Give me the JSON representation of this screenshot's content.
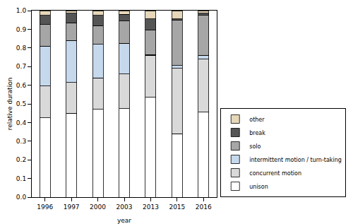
{
  "chart_data": {
    "type": "bar",
    "stacked": true,
    "orientation": "vertical",
    "x_label": "year",
    "y_label": "relative duration",
    "categories": [
      "1996",
      "1997",
      "2000",
      "2003",
      "2013",
      "2015",
      "2016"
    ],
    "series": [
      {
        "name": "unison",
        "color": "#ffffff",
        "values": [
          0.425,
          0.45,
          0.47,
          0.475,
          0.535,
          0.34,
          0.455
        ]
      },
      {
        "name": "concurrent motion",
        "color": "#d9d9d9",
        "values": [
          0.17,
          0.165,
          0.17,
          0.185,
          0.225,
          0.35,
          0.285
        ]
      },
      {
        "name": "intermittent motion / turn-taking",
        "color": "#c6d8ec",
        "values": [
          0.215,
          0.225,
          0.18,
          0.165,
          0.005,
          0.015,
          0.02
        ]
      },
      {
        "name": "solo",
        "color": "#a6a6a6",
        "values": [
          0.115,
          0.095,
          0.1,
          0.12,
          0.13,
          0.245,
          0.215
        ]
      },
      {
        "name": "break",
        "color": "#555555",
        "values": [
          0.05,
          0.05,
          0.055,
          0.035,
          0.06,
          0.005,
          0.01
        ]
      },
      {
        "name": "other",
        "color": "#e6d7b9",
        "values": [
          0.025,
          0.015,
          0.025,
          0.02,
          0.045,
          0.045,
          0.015
        ]
      }
    ],
    "ylim": [
      0,
      1
    ],
    "yticks": [
      {
        "value": 0,
        "label": "0.0"
      },
      0.1,
      0.2,
      0.3,
      0.4,
      0.5,
      0.6,
      0.7,
      0.8,
      0.9,
      {
        "value": 1,
        "label": "1.0"
      }
    ],
    "grid": false,
    "legend": "right"
  }
}
